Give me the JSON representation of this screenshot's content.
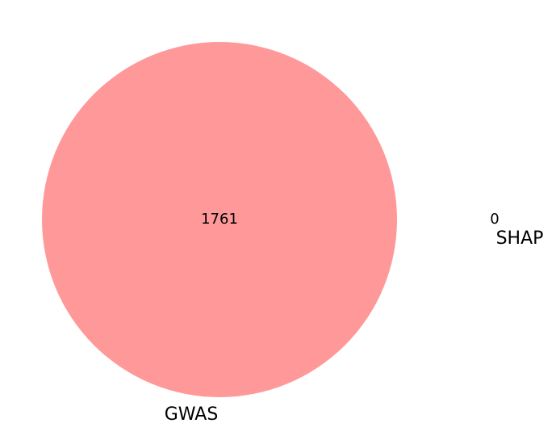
{
  "venn": {
    "sets": [
      {
        "name": "GWAS",
        "color": "#ff9999"
      },
      {
        "name": "SHAP",
        "color": "#99ff99"
      }
    ],
    "counts": {
      "gwas_only": "1761",
      "shap_only": "0"
    }
  }
}
